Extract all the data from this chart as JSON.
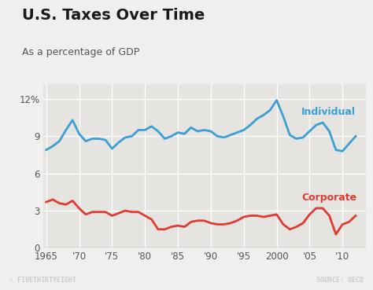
{
  "title": "U.S. Taxes Over Time",
  "subtitle": "As a percentage of GDP",
  "footer_left": "✓ FIVETHIRTYEIGHT",
  "footer_right": "SOURCE: OECD",
  "individual_x": [
    1965,
    1966,
    1967,
    1968,
    1969,
    1970,
    1971,
    1972,
    1973,
    1974,
    1975,
    1976,
    1977,
    1978,
    1979,
    1980,
    1981,
    1982,
    1983,
    1984,
    1985,
    1986,
    1987,
    1988,
    1989,
    1990,
    1991,
    1992,
    1993,
    1994,
    1995,
    1996,
    1997,
    1998,
    1999,
    2000,
    2001,
    2002,
    2003,
    2004,
    2005,
    2006,
    2007,
    2008,
    2009,
    2010,
    2011,
    2012
  ],
  "individual_y": [
    7.9,
    8.2,
    8.6,
    9.5,
    10.3,
    9.2,
    8.6,
    8.8,
    8.8,
    8.7,
    8.0,
    8.5,
    8.9,
    9.0,
    9.5,
    9.5,
    9.8,
    9.4,
    8.8,
    9.0,
    9.3,
    9.2,
    9.7,
    9.4,
    9.5,
    9.4,
    9.0,
    8.9,
    9.1,
    9.3,
    9.5,
    9.9,
    10.4,
    10.7,
    11.1,
    11.9,
    10.6,
    9.1,
    8.8,
    8.9,
    9.4,
    9.9,
    10.1,
    9.4,
    7.9,
    7.8,
    8.4,
    9.0
  ],
  "corporate_x": [
    1965,
    1966,
    1967,
    1968,
    1969,
    1970,
    1971,
    1972,
    1973,
    1974,
    1975,
    1976,
    1977,
    1978,
    1979,
    1980,
    1981,
    1982,
    1983,
    1984,
    1985,
    1986,
    1987,
    1988,
    1989,
    1990,
    1991,
    1992,
    1993,
    1994,
    1995,
    1996,
    1997,
    1998,
    1999,
    2000,
    2001,
    2002,
    2003,
    2004,
    2005,
    2006,
    2007,
    2008,
    2009,
    2010,
    2011,
    2012
  ],
  "corporate_y": [
    3.7,
    3.9,
    3.6,
    3.5,
    3.8,
    3.2,
    2.7,
    2.9,
    2.9,
    2.9,
    2.6,
    2.8,
    3.0,
    2.9,
    2.9,
    2.6,
    2.3,
    1.5,
    1.5,
    1.7,
    1.8,
    1.7,
    2.1,
    2.2,
    2.2,
    2.0,
    1.9,
    1.9,
    2.0,
    2.2,
    2.5,
    2.6,
    2.6,
    2.5,
    2.6,
    2.7,
    1.9,
    1.5,
    1.7,
    2.0,
    2.7,
    3.2,
    3.2,
    2.6,
    1.1,
    1.9,
    2.1,
    2.6
  ],
  "individual_color": "#3b9fd4",
  "corporate_color": "#e03b2e",
  "bg_color": "#f0efed",
  "plot_bg_color": "#e5e4e0",
  "footer_bg_color": "#555555",
  "xticks": [
    1965,
    1970,
    1975,
    1980,
    1985,
    1990,
    1995,
    2000,
    2005,
    2010
  ],
  "xtick_labels": [
    "1965",
    "'70",
    "'75",
    "'80",
    "'85",
    "'90",
    "'95",
    "2000",
    "'05",
    "'10"
  ],
  "yticks": [
    0,
    3,
    6,
    9,
    12
  ],
  "ytick_labels": [
    "0",
    "3",
    "6",
    "9",
    "12%"
  ],
  "ylim": [
    0,
    13.2
  ],
  "xlim": [
    1964.5,
    2013.5
  ],
  "individual_label": "Individual",
  "corporate_label": "Corporate",
  "line_width": 2.0
}
